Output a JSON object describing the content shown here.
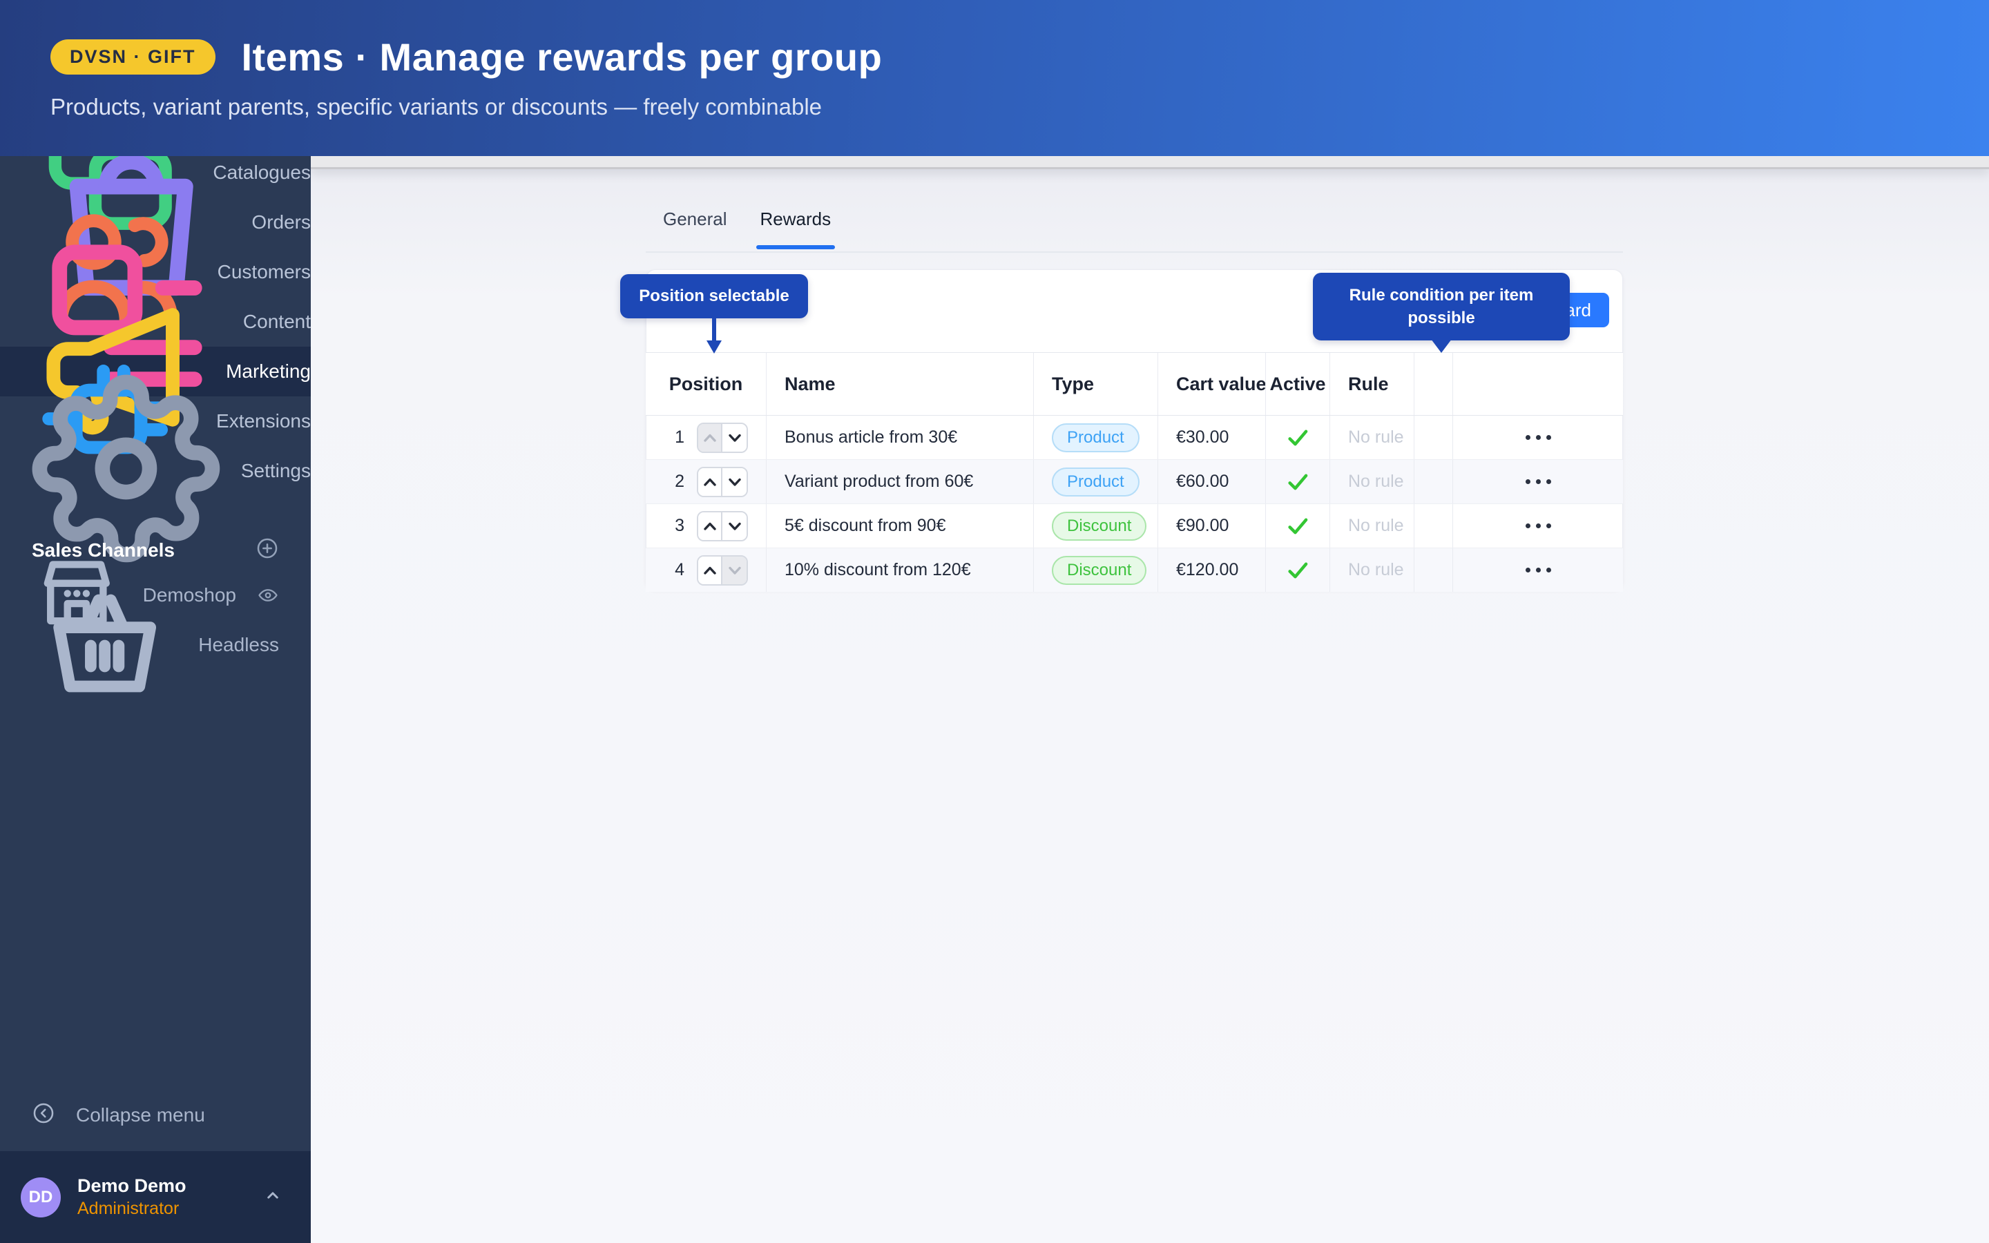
{
  "header": {
    "badge": "DVSN · GIFT",
    "title": "Items · Manage rewards per group",
    "subtitle": "Products, variant parents, specific variants or discounts — freely combinable"
  },
  "sidebar": {
    "items": [
      {
        "id": "catalogues",
        "label": "Catalogues",
        "icon": "catalogues",
        "active": false
      },
      {
        "id": "orders",
        "label": "Orders",
        "icon": "orders",
        "active": false
      },
      {
        "id": "customers",
        "label": "Customers",
        "icon": "customers",
        "active": false
      },
      {
        "id": "content",
        "label": "Content",
        "icon": "content",
        "active": false
      },
      {
        "id": "marketing",
        "label": "Marketing",
        "icon": "marketing",
        "active": true
      },
      {
        "id": "extensions",
        "label": "Extensions",
        "icon": "extensions",
        "active": false
      },
      {
        "id": "settings",
        "label": "Settings",
        "icon": "settings",
        "active": false
      }
    ],
    "sales_channels": {
      "label": "Sales Channels",
      "items": [
        {
          "id": "demoshop",
          "label": "Demoshop",
          "icon": "storefront",
          "eye": true
        },
        {
          "id": "headless",
          "label": "Headless",
          "icon": "basket",
          "eye": false
        }
      ]
    },
    "collapse_label": "Collapse menu",
    "user": {
      "initials": "DD",
      "name": "Demo Demo",
      "role": "Administrator"
    }
  },
  "main": {
    "tabs": [
      {
        "id": "general",
        "label": "General",
        "active": false
      },
      {
        "id": "rewards",
        "label": "Rewards",
        "active": true
      }
    ],
    "add_button_label": "Add reward",
    "tooltips": {
      "position": "Position selectable",
      "rule": "Rule condition per item possible"
    },
    "table": {
      "columns": [
        "Position",
        "Name",
        "Type",
        "Cart value",
        "Active",
        "Rule",
        "",
        ""
      ],
      "type_colors": {
        "Product": "blue",
        "Discount": "green"
      },
      "rows": [
        {
          "position": "1",
          "name": "Bonus article from 30€",
          "type": "Product",
          "cart_value": "€30.00",
          "active": true,
          "rule": "No rule",
          "up_disabled": true,
          "down_disabled": false
        },
        {
          "position": "2",
          "name": "Variant product from 60€",
          "type": "Product",
          "cart_value": "€60.00",
          "active": true,
          "rule": "No rule",
          "up_disabled": false,
          "down_disabled": false
        },
        {
          "position": "3",
          "name": "5€ discount from 90€",
          "type": "Discount",
          "cart_value": "€90.00",
          "active": true,
          "rule": "No rule",
          "up_disabled": false,
          "down_disabled": false
        },
        {
          "position": "4",
          "name": "10% discount from 120€",
          "type": "Discount",
          "cart_value": "€120.00",
          "active": true,
          "rule": "No rule",
          "up_disabled": false,
          "down_disabled": true
        }
      ]
    }
  },
  "colors": {
    "header_gradient_start": "#253e80",
    "header_gradient_end": "#3b82ee",
    "badge_yellow": "#f5c72c",
    "sidebar_bg": "#2b3a55",
    "sidebar_active_bg": "#1e2c49",
    "tooltip_blue": "#1d48b6",
    "button_blue": "#2979ff",
    "tab_underline_blue": "#2170f0",
    "check_green": "#33c633",
    "product_badge_text": "#3da2f5",
    "discount_badge_text": "#3ec23e",
    "role_orange": "#ef9400",
    "avatar_purple": "#9f8df5"
  }
}
